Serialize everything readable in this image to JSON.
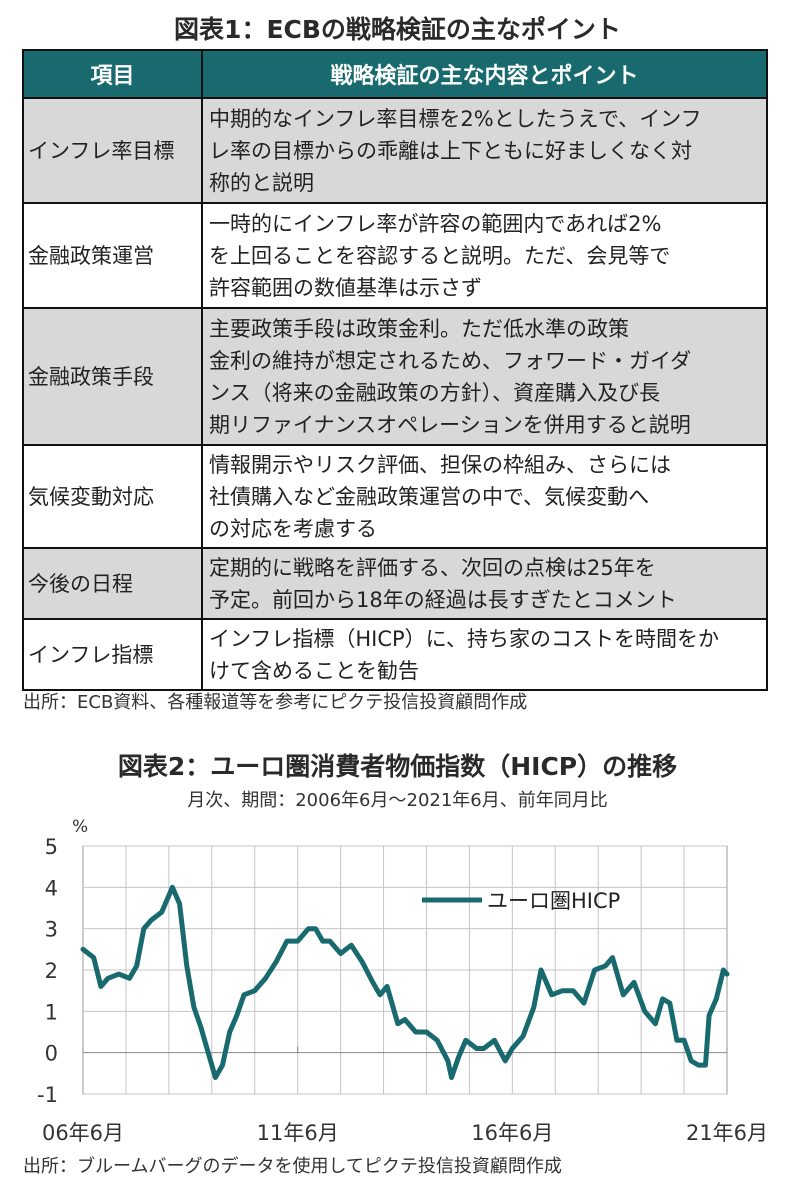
{
  "table1": {
    "title": "図表1：ECBの戦略検証の主なポイント",
    "headers": [
      "項目",
      "戦略検証の主な内容とポイント"
    ],
    "rows": [
      {
        "item": "インフレ率目標",
        "lines": [
          "中期的なインフレ率目標を2%としたうえで、インフ",
          "レ率の目標からの乖離は上下ともに好ましくなく対",
          "称的と説明"
        ]
      },
      {
        "item": "金融政策運営",
        "lines": [
          "一時的にインフレ率が許容の範囲内であれば2%",
          "を上回ることを容認すると説明。ただ、会見等で",
          "許容範囲の数値基準は示さず"
        ]
      },
      {
        "item": "金融政策手段",
        "lines": [
          "主要政策手段は政策金利。ただ低水準の政策",
          "金利の維持が想定されるため、フォワード・ガイダ",
          "ンス（将来の金融政策の方針）、資産購入及び長",
          "期リファイナンスオペレーションを併用すると説明"
        ]
      },
      {
        "item": "気候変動対応",
        "lines": [
          "情報開示やリスク評価、担保の枠組み、さらには",
          "社債購入など金融政策運営の中で、気候変動へ",
          "の対応を考慮する"
        ]
      },
      {
        "item": "今後の日程",
        "lines": [
          "定期的に戦略を評価する、次回の点検は25年を",
          "予定。前回から18年の経過は長すぎたとコメント"
        ]
      },
      {
        "item": "インフレ指標",
        "lines": [
          "インフレ指標（HICP）に、持ち家のコストを時間をか",
          "けて含めることを勧告"
        ]
      }
    ],
    "source": "出所：ECB資料、各種報道等を参考にピクテ投信投資顧問作成"
  },
  "chart_data": {
    "type": "line",
    "title": "図表2：ユーロ圏消費者物価指数（HICP）の推移",
    "subtitle": "月次、期間：2006年6月～2021年6月、前年同月比",
    "ylabel": "%",
    "ylim": [
      -1,
      5
    ],
    "yticks": [
      -1,
      0,
      1,
      2,
      3,
      4,
      5
    ],
    "x_tick_labels": [
      "06年6月",
      "11年6月",
      "16年6月",
      "21年6月"
    ],
    "grid": true,
    "legend_position": "top-right",
    "series": [
      {
        "name": "ユーロ圏HICP",
        "color": "#186a6e",
        "x": [
          "2006-06",
          "2006-09",
          "2006-11",
          "2007-01",
          "2007-04",
          "2007-07",
          "2007-09",
          "2007-11",
          "2008-01",
          "2008-04",
          "2008-07",
          "2008-09",
          "2008-11",
          "2009-01",
          "2009-03",
          "2009-05",
          "2009-07",
          "2009-09",
          "2009-11",
          "2010-01",
          "2010-03",
          "2010-06",
          "2010-09",
          "2010-12",
          "2011-03",
          "2011-06",
          "2011-09",
          "2011-11",
          "2012-01",
          "2012-03",
          "2012-06",
          "2012-09",
          "2012-12",
          "2013-03",
          "2013-05",
          "2013-07",
          "2013-10",
          "2013-12",
          "2014-03",
          "2014-06",
          "2014-09",
          "2014-12",
          "2015-01",
          "2015-03",
          "2015-05",
          "2015-08",
          "2015-10",
          "2016-01",
          "2016-04",
          "2016-06",
          "2016-09",
          "2016-12",
          "2017-02",
          "2017-05",
          "2017-08",
          "2017-11",
          "2018-02",
          "2018-05",
          "2018-08",
          "2018-10",
          "2019-01",
          "2019-04",
          "2019-07",
          "2019-10",
          "2019-12",
          "2020-02",
          "2020-04",
          "2020-06",
          "2020-08",
          "2020-10",
          "2020-12",
          "2021-01",
          "2021-03",
          "2021-05",
          "2021-06"
        ],
        "values": [
          2.5,
          2.3,
          1.6,
          1.8,
          1.9,
          1.8,
          2.1,
          3.0,
          3.2,
          3.4,
          4.0,
          3.6,
          2.1,
          1.1,
          0.6,
          0.0,
          -0.6,
          -0.3,
          0.5,
          0.9,
          1.4,
          1.5,
          1.8,
          2.2,
          2.7,
          2.7,
          3.0,
          3.0,
          2.7,
          2.7,
          2.4,
          2.6,
          2.2,
          1.7,
          1.4,
          1.6,
          0.7,
          0.8,
          0.5,
          0.5,
          0.3,
          -0.2,
          -0.6,
          -0.1,
          0.3,
          0.1,
          0.1,
          0.3,
          -0.2,
          0.1,
          0.4,
          1.1,
          2.0,
          1.4,
          1.5,
          1.5,
          1.2,
          2.0,
          2.1,
          2.3,
          1.4,
          1.7,
          1.0,
          0.7,
          1.3,
          1.2,
          0.3,
          0.3,
          -0.2,
          -0.3,
          -0.3,
          0.9,
          1.3,
          2.0,
          1.9
        ]
      }
    ],
    "source": "出所：ブルームバーグのデータを使用してピクテ投信投資顧問作成"
  }
}
